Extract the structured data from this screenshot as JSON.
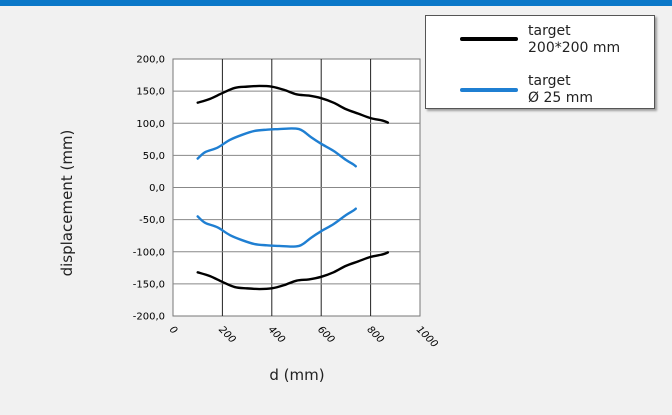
{
  "chart_data": {
    "type": "line",
    "xlabel": "d (mm)",
    "ylabel": "displacement (mm)",
    "xlim": [
      0,
      1000
    ],
    "ylim": [
      -200,
      200
    ],
    "x_ticks": [
      "0",
      "200",
      "400",
      "600",
      "800",
      "1000"
    ],
    "y_ticks": [
      "200,0",
      "150,0",
      "100,0",
      "50,0",
      "0,0",
      "-50,0",
      "-100,0",
      "-150,0",
      "-200,0"
    ],
    "grid": "vertical and horizontal",
    "legend_position": "top-right",
    "series": [
      {
        "name": "target\n200*200 mm",
        "color": "#000000",
        "x": [
          100,
          150,
          200,
          250,
          300,
          350,
          400,
          450,
          500,
          550,
          600,
          650,
          700,
          750,
          800,
          850,
          870
        ],
        "y": [
          132,
          138,
          147,
          155,
          157,
          158,
          157,
          152,
          145,
          143,
          139,
          132,
          122,
          115,
          108,
          104,
          101
        ]
      },
      {
        "name": "",
        "color": "#000000",
        "x": [
          100,
          150,
          200,
          250,
          300,
          350,
          400,
          450,
          500,
          550,
          600,
          650,
          700,
          750,
          800,
          850,
          870
        ],
        "y": [
          -132,
          -138,
          -147,
          -155,
          -157,
          -158,
          -157,
          -152,
          -145,
          -143,
          -139,
          -132,
          -122,
          -115,
          -108,
          -104,
          -101
        ]
      },
      {
        "name": "target\nØ 25 mm",
        "color": "#1f7fd2",
        "x": [
          100,
          130,
          180,
          230,
          280,
          330,
          380,
          430,
          480,
          510,
          530,
          560,
          600,
          650,
          700,
          730,
          740
        ],
        "y": [
          45,
          55,
          62,
          74,
          82,
          88,
          90,
          91,
          92,
          91,
          87,
          78,
          68,
          57,
          43,
          36,
          33
        ]
      },
      {
        "name": "",
        "color": "#1f7fd2",
        "x": [
          100,
          130,
          180,
          230,
          280,
          330,
          380,
          430,
          480,
          510,
          530,
          560,
          600,
          650,
          700,
          730,
          740
        ],
        "y": [
          -45,
          -55,
          -62,
          -74,
          -82,
          -88,
          -90,
          -91,
          -92,
          -91,
          -87,
          -78,
          -68,
          -57,
          -43,
          -36,
          -33
        ]
      }
    ]
  },
  "legend": [
    {
      "label": "target\n200*200 mm",
      "color": "#000000"
    },
    {
      "label": "target\nØ 25 mm",
      "color": "#1f7fd2"
    }
  ]
}
